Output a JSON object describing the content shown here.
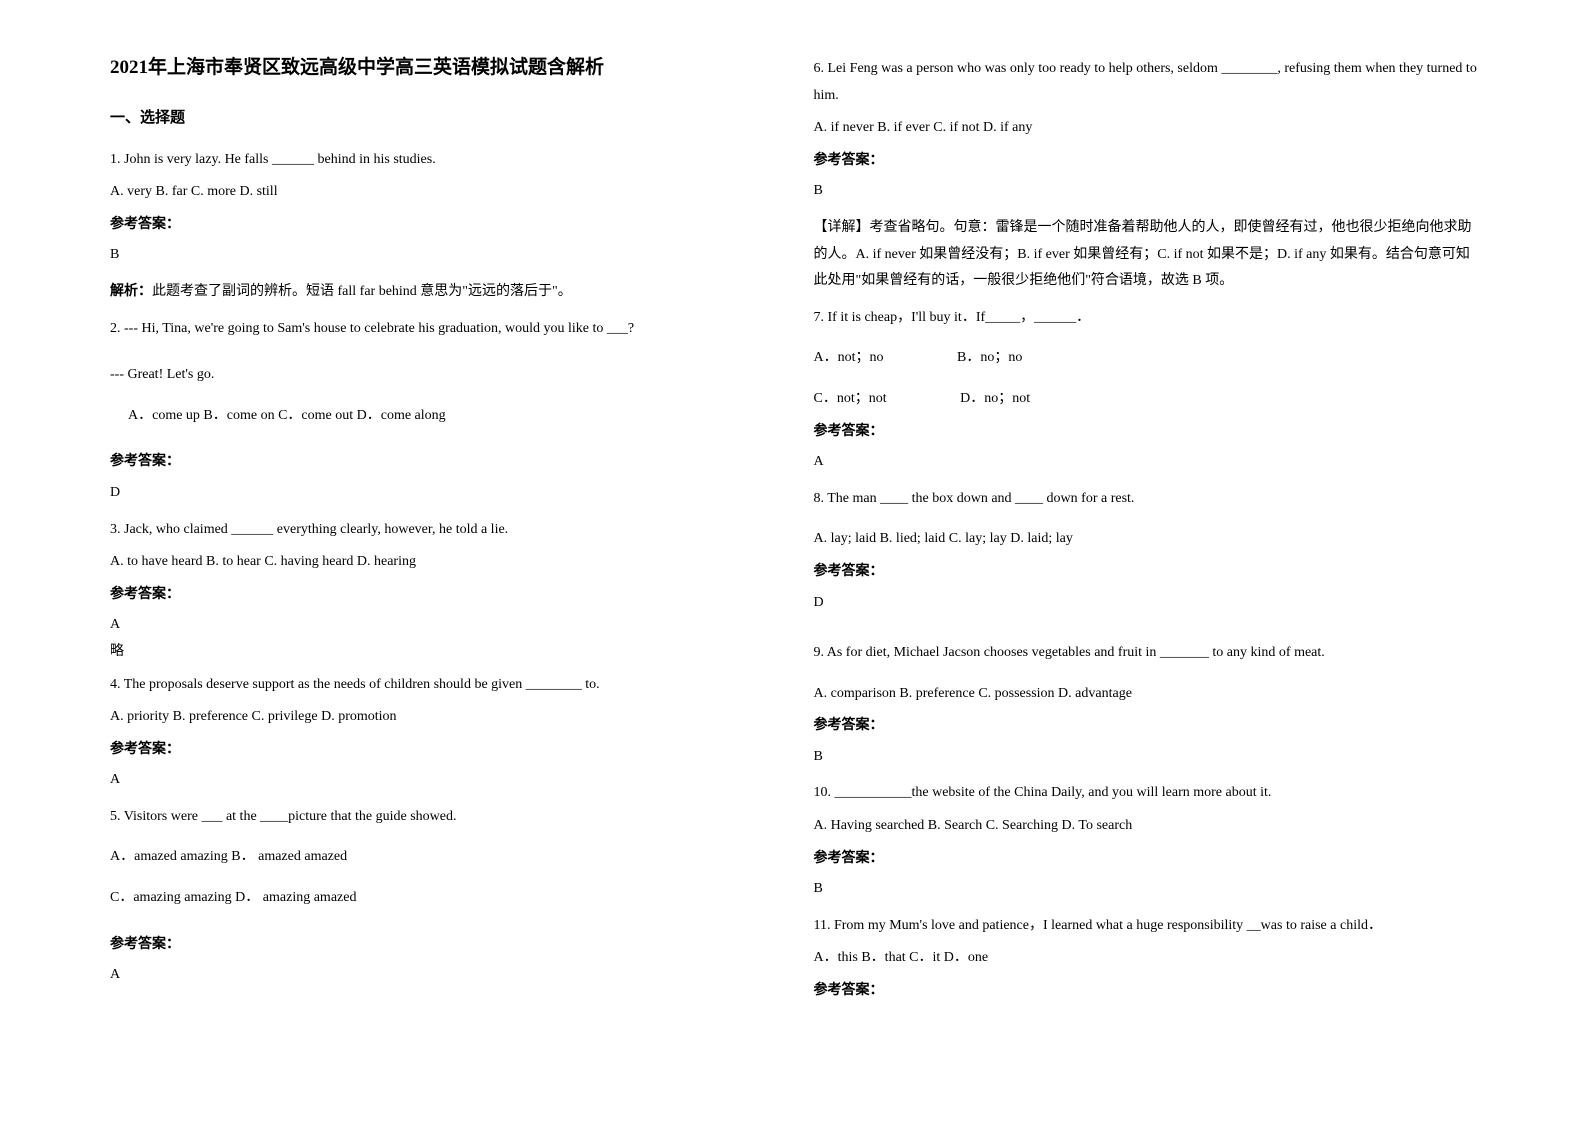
{
  "title": "2021年上海市奉贤区致远高级中学高三英语模拟试题含解析",
  "section1": "一、选择题",
  "q1": {
    "text": "1. John is very lazy. He falls ______ behind in his studies.",
    "opts": " A. very             B. far            C. more   D. still",
    "ansLabel": "参考答案：",
    "ans": "B",
    "analysisLabel": "解析：",
    "analysis": "此题考查了副词的辨析。短语 fall far behind 意思为\"远远的落后于\"。"
  },
  "q2": {
    "text": "2. --- Hi, Tina, we're going to Sam's house to celebrate his graduation, would you like to ___?",
    "text2": "--- Great! Let's go.",
    "opts": "A．come up       B．come on    C．come out          D．come along",
    "ansLabel": "参考答案：",
    "ans": "D"
  },
  "q3": {
    "text": "3. Jack, who claimed ______ everything clearly, however, he told a lie.",
    "opts": "     A. to have heard        B. to hear                  C. having heard         D. hearing",
    "ansLabel": "参考答案：",
    "ans": "A",
    "note": "略"
  },
  "q4": {
    "text": "4. The proposals deserve support as the needs of children should be given ________ to.",
    "opts": "A. priority        B. preference     C. privilege    D. promotion",
    "ansLabel": "参考答案：",
    "ans": "A"
  },
  "q5": {
    "text": "5. Visitors were ___ at the ____picture that the guide showed.",
    "optsA": "A．amazed     amazing                   B．  amazed      amazed",
    "optsB": "C．amazing    amazing                  D．  amazing     amazed",
    "ansLabel": "参考答案：",
    "ans": "A"
  },
  "q6": {
    "text": "6. Lei Feng was a person who was only too ready to help others, seldom ________, refusing them when they turned to him.",
    "opts": "A. if never        B. if ever           C. if not D. if any",
    "ansLabel": "参考答案：",
    "ans": "B",
    "analysis": "【详解】考查省略句。句意：雷锋是一个随时准备着帮助他人的人，即使曾经有过，他也很少拒绝向他求助的人。A. if never 如果曾经没有；B. if ever 如果曾经有；C. if not 如果不是；D. if any 如果有。结合句意可知此处用\"如果曾经有的话，一般很少拒绝他们\"符合语境，故选 B 项。"
  },
  "q7": {
    "text": "7. If it is cheap，I'll buy it．If_____，______．",
    "optA": "A．not；no",
    "optB": "B．no；no",
    "optC": "C．not；not",
    "optD": "D．no；not",
    "ansLabel": "参考答案：",
    "ans": "A"
  },
  "q8": {
    "text": "8. The man ____ the box down and ____ down for a rest.",
    "opts": "  A. lay; laid      B. lied; laid       C. lay; lay     D. laid; lay",
    "ansLabel": "参考答案：",
    "ans": "D"
  },
  "q9": {
    "text": "9. As for diet, Michael Jacson chooses vegetables and fruit in _______ to any kind of meat.",
    "opts": "    A. comparison            B. preference          C. possession             D. advantage",
    "ansLabel": "参考答案：",
    "ans": "B"
  },
  "q10": {
    "text": "10. ___________the website of the China Daily, and you will learn more about it.",
    "opts": "        A. Having searched          B. Search                   C. Searching                D. To search",
    "ansLabel": "参考答案：",
    "ans": "B"
  },
  "q11": {
    "text": "11. From my Mum's love and patience，I learned what a huge responsibility __was to raise a child．",
    "opts": "     A．this   B．that   C．it  D．one",
    "ansLabel": "参考答案："
  }
}
